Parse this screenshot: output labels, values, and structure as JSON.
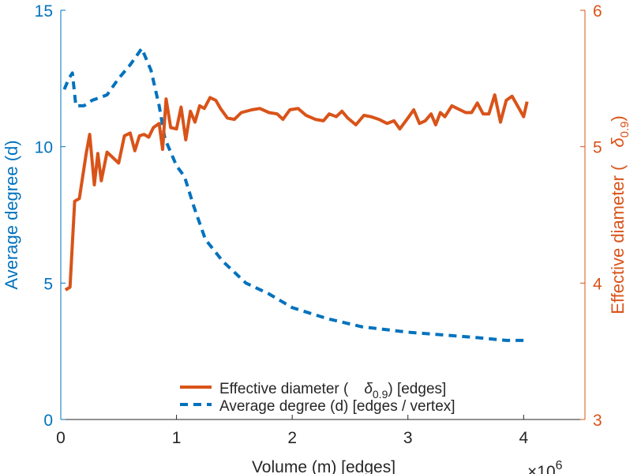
{
  "chart_data": {
    "type": "line",
    "xlabel": "Volume (m) [edges]",
    "x_exponent_label": "×10",
    "x_exponent_power": "6",
    "xlim": [
      0,
      4.53
    ],
    "xticks": [
      "0",
      "1",
      "2",
      "3",
      "4"
    ],
    "left_axis": {
      "label": "Average degree (d)",
      "ylim": [
        0,
        15
      ],
      "ticks": [
        "0",
        "5",
        "10",
        "15"
      ],
      "color": "#0072BD"
    },
    "right_axis": {
      "label_main": "Effective diameter (",
      "label_symbol": "δ",
      "label_sub": "0.9",
      "label_close": ")",
      "ylim": [
        3,
        6
      ],
      "ticks": [
        "3",
        "4",
        "5",
        "6"
      ],
      "color": "#D95319"
    },
    "legend": {
      "placement": "bottom-right",
      "entries": [
        {
          "text": "Average degree (d) [edges / vertex]"
        },
        {
          "text_pre": "Effective diameter (",
          "symbol": "δ",
          "sub": "0.9",
          "text_post": ") [edges]"
        }
      ]
    },
    "series": [
      {
        "name": "Average degree (d) [edges / vertex]",
        "axis": "left",
        "style": "dashed",
        "color": "#0072BD",
        "x": [
          0.03,
          0.07,
          0.1,
          0.13,
          0.2,
          0.27,
          0.4,
          0.5,
          0.6,
          0.7,
          0.78,
          0.85,
          0.9,
          0.95,
          1.0,
          1.07,
          1.15,
          1.25,
          1.4,
          1.6,
          1.8,
          2.0,
          2.3,
          2.6,
          3.0,
          3.3,
          3.6,
          3.85,
          4.0
        ],
        "y": [
          12.1,
          12.5,
          12.7,
          11.5,
          11.5,
          11.7,
          11.9,
          12.5,
          13.0,
          13.6,
          12.8,
          11.5,
          10.3,
          9.8,
          9.3,
          8.9,
          7.8,
          6.6,
          5.8,
          5.0,
          4.6,
          4.1,
          3.7,
          3.4,
          3.2,
          3.1,
          3.0,
          2.9,
          2.9
        ]
      },
      {
        "name": "Effective diameter (δ0.9) [edges]",
        "axis": "right",
        "style": "solid",
        "color": "#D95319",
        "x": [
          0.04,
          0.08,
          0.12,
          0.16,
          0.22,
          0.25,
          0.29,
          0.32,
          0.35,
          0.4,
          0.45,
          0.5,
          0.55,
          0.6,
          0.64,
          0.68,
          0.72,
          0.76,
          0.8,
          0.85,
          0.88,
          0.91,
          0.95,
          1.0,
          1.04,
          1.08,
          1.12,
          1.16,
          1.2,
          1.24,
          1.29,
          1.34,
          1.38,
          1.44,
          1.5,
          1.56,
          1.65,
          1.72,
          1.8,
          1.87,
          1.92,
          1.98,
          2.05,
          2.12,
          2.2,
          2.27,
          2.32,
          2.38,
          2.43,
          2.48,
          2.55,
          2.62,
          2.68,
          2.75,
          2.82,
          2.88,
          2.93,
          3.0,
          3.05,
          3.1,
          3.15,
          3.2,
          3.24,
          3.28,
          3.32,
          3.38,
          3.45,
          3.5,
          3.55,
          3.6,
          3.65,
          3.7,
          3.75,
          3.8,
          3.85,
          3.9,
          3.96,
          4.0,
          4.03
        ],
        "y": [
          3.95,
          3.97,
          4.6,
          4.62,
          4.95,
          5.09,
          4.72,
          4.95,
          4.75,
          4.96,
          4.92,
          4.88,
          5.08,
          5.1,
          4.97,
          5.08,
          5.09,
          5.07,
          5.14,
          5.17,
          4.98,
          5.35,
          5.14,
          5.13,
          5.29,
          5.05,
          5.26,
          5.18,
          5.3,
          5.28,
          5.36,
          5.34,
          5.28,
          5.21,
          5.2,
          5.25,
          5.27,
          5.28,
          5.25,
          5.24,
          5.2,
          5.27,
          5.28,
          5.23,
          5.2,
          5.19,
          5.24,
          5.22,
          5.26,
          5.21,
          5.16,
          5.23,
          5.22,
          5.2,
          5.17,
          5.19,
          5.13,
          5.21,
          5.27,
          5.17,
          5.19,
          5.24,
          5.16,
          5.25,
          5.22,
          5.3,
          5.27,
          5.25,
          5.25,
          5.32,
          5.24,
          5.24,
          5.38,
          5.18,
          5.34,
          5.37,
          5.28,
          5.22,
          5.33
        ]
      }
    ]
  }
}
